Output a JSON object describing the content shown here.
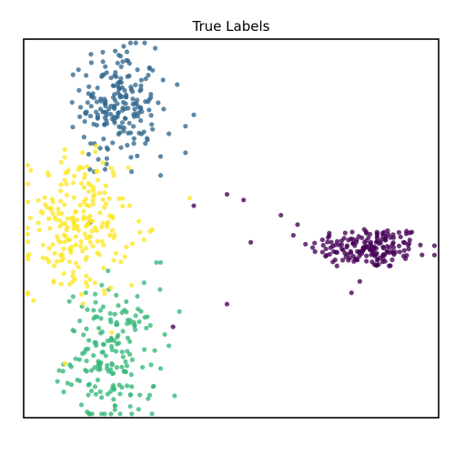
{
  "chart_data": {
    "type": "scatter",
    "title": "True Labels",
    "xlabel": "",
    "ylabel": "",
    "axes_visible": false,
    "xlim": [
      0,
      10
    ],
    "ylim": [
      0,
      10
    ],
    "grid": false,
    "legend": false,
    "series": [
      {
        "color": "#440154",
        "center": [
          8.3,
          4.5
        ],
        "spread": [
          0.7,
          0.28
        ],
        "count": 170,
        "outliers": [
          [
            4.1,
            5.6
          ],
          [
            4.9,
            5.9
          ],
          [
            5.3,
            5.75
          ],
          [
            6.2,
            5.35
          ],
          [
            6.6,
            5.1
          ],
          [
            7.2,
            4.7
          ],
          [
            7.9,
            3.3
          ],
          [
            8.1,
            3.6
          ],
          [
            3.6,
            2.4
          ],
          [
            4.9,
            3.0
          ],
          [
            8.7,
            4.3
          ],
          [
            9.2,
            4.2
          ],
          [
            9.6,
            4.3
          ]
        ]
      },
      {
        "color": "#31688e",
        "center": [
          2.3,
          8.3
        ],
        "spread": [
          0.45,
          0.75
        ],
        "count": 200,
        "outliers": [
          [
            3.9,
            7.7
          ],
          [
            4.1,
            8.0
          ],
          [
            3.7,
            8.8
          ],
          [
            3.5,
            7.5
          ],
          [
            3.9,
            7.0
          ],
          [
            3.3,
            6.4
          ],
          [
            1.7,
            6.5
          ],
          [
            2.0,
            6.7
          ],
          [
            2.6,
            6.5
          ],
          [
            3.3,
            6.9
          ]
        ]
      },
      {
        "color": "#35b779",
        "center": [
          2.1,
          1.6
        ],
        "spread": [
          0.55,
          0.9
        ],
        "count": 180,
        "outliers": [
          [
            3.4,
            2.2
          ],
          [
            3.5,
            1.9
          ],
          [
            3.3,
            1.3
          ],
          [
            2.8,
            0.6
          ],
          [
            3.0,
            0.5
          ],
          [
            3.2,
            4.1
          ],
          [
            3.3,
            4.1
          ],
          [
            1.5,
            3.3
          ]
        ]
      },
      {
        "color": "#fde725",
        "center": [
          1.3,
          5.1
        ],
        "spread": [
          0.6,
          0.95
        ],
        "count": 220,
        "outliers": [
          [
            4.0,
            5.8
          ],
          [
            2.8,
            4.9
          ],
          [
            2.9,
            4.7
          ],
          [
            0.6,
            6.4
          ],
          [
            2.6,
            3.5
          ]
        ]
      }
    ]
  }
}
